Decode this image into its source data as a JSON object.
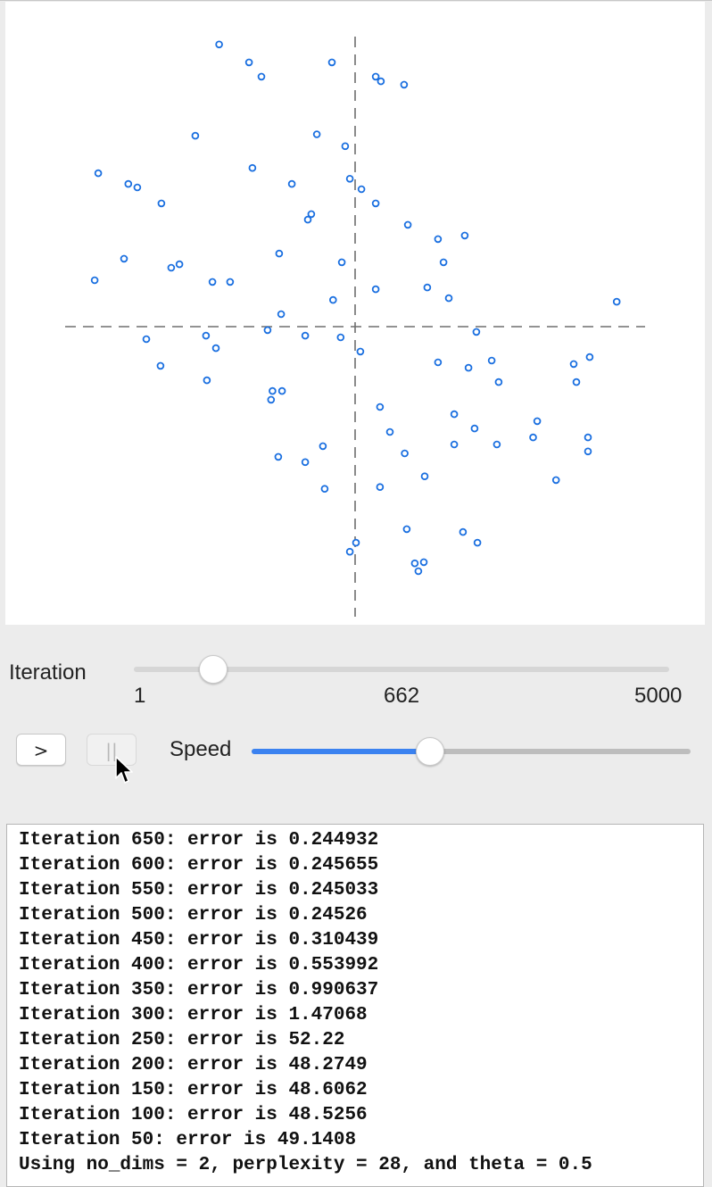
{
  "colors": {
    "point_stroke": "#1a6fe0",
    "axis_dash": "#6e6e6e",
    "slider_accent": "#3b82f0"
  },
  "chart_data": {
    "type": "scatter",
    "title": "",
    "xlabel": "",
    "ylabel": "",
    "xlim": [
      -1,
      1
    ],
    "ylim": [
      -1,
      1
    ],
    "axes": "dashed lines through origin",
    "grid": false,
    "series": [
      {
        "points": [
          [
            -0.469,
            0.973
          ],
          [
            -0.366,
            0.911
          ],
          [
            -0.323,
            0.862
          ],
          [
            -0.08,
            0.911
          ],
          [
            0.071,
            0.862
          ],
          [
            0.089,
            0.846
          ],
          [
            0.169,
            0.834
          ],
          [
            -0.551,
            0.658
          ],
          [
            -0.132,
            0.663
          ],
          [
            -0.034,
            0.622
          ],
          [
            -0.354,
            0.547
          ],
          [
            -0.886,
            0.529
          ],
          [
            -0.782,
            0.492
          ],
          [
            -0.751,
            0.48
          ],
          [
            -0.218,
            0.492
          ],
          [
            -0.018,
            0.51
          ],
          [
            0.022,
            0.474
          ],
          [
            0.071,
            0.425
          ],
          [
            -0.668,
            0.425
          ],
          [
            -0.151,
            0.388
          ],
          [
            -0.163,
            0.369
          ],
          [
            0.182,
            0.351
          ],
          [
            0.286,
            0.302
          ],
          [
            0.378,
            0.314
          ],
          [
            -0.797,
            0.234
          ],
          [
            -0.262,
            0.252
          ],
          [
            -0.634,
            0.203
          ],
          [
            -0.606,
            0.215
          ],
          [
            0.305,
            0.222
          ],
          [
            -0.046,
            0.222
          ],
          [
            -0.898,
            0.16
          ],
          [
            -0.492,
            0.154
          ],
          [
            -0.431,
            0.154
          ],
          [
            0.071,
            0.129
          ],
          [
            0.249,
            0.135
          ],
          [
            0.323,
            0.098
          ],
          [
            -0.076,
            0.092
          ],
          [
            0.902,
            0.086
          ],
          [
            -0.255,
            0.043
          ],
          [
            -0.302,
            -0.012
          ],
          [
            -0.172,
            -0.031
          ],
          [
            -0.514,
            -0.031
          ],
          [
            -0.72,
            -0.043
          ],
          [
            -0.05,
            -0.037
          ],
          [
            0.418,
            -0.018
          ],
          [
            -0.48,
            -0.074
          ],
          [
            0.018,
            -0.086
          ],
          [
            -0.671,
            -0.135
          ],
          [
            0.286,
            -0.123
          ],
          [
            0.391,
            -0.142
          ],
          [
            0.471,
            -0.117
          ],
          [
            0.754,
            -0.129
          ],
          [
            0.809,
            -0.105
          ],
          [
            -0.511,
            -0.185
          ],
          [
            -0.285,
            -0.222
          ],
          [
            -0.252,
            -0.222
          ],
          [
            -0.29,
            -0.252
          ],
          [
            0.495,
            -0.191
          ],
          [
            0.763,
            -0.191
          ],
          [
            0.086,
            -0.277
          ],
          [
            0.342,
            -0.302
          ],
          [
            0.628,
            -0.326
          ],
          [
            0.12,
            -0.363
          ],
          [
            0.412,
            -0.351
          ],
          [
            0.489,
            -0.406
          ],
          [
            0.614,
            -0.382
          ],
          [
            0.803,
            -0.382
          ],
          [
            0.342,
            -0.406
          ],
          [
            -0.111,
            -0.412
          ],
          [
            0.171,
            -0.437
          ],
          [
            -0.265,
            -0.449
          ],
          [
            -0.172,
            -0.467
          ],
          [
            0.803,
            -0.43
          ],
          [
            0.24,
            -0.516
          ],
          [
            -0.105,
            -0.559
          ],
          [
            0.086,
            -0.553
          ],
          [
            0.693,
            -0.529
          ],
          [
            0.178,
            -0.698
          ],
          [
            0.372,
            -0.708
          ],
          [
            0.422,
            -0.745
          ],
          [
            0.003,
            -0.745
          ],
          [
            -0.018,
            -0.776
          ],
          [
            0.206,
            -0.816
          ],
          [
            0.237,
            -0.812
          ],
          [
            0.218,
            -0.843
          ]
        ]
      }
    ]
  },
  "iteration": {
    "label": "Iteration",
    "min_label": "1",
    "current_label": "662",
    "max_label": "5000",
    "min": 1,
    "max": 5000,
    "value": 662
  },
  "controls": {
    "play_label": ">",
    "pause_label": "||",
    "play_icon": "play-icon",
    "pause_icon": "pause-icon",
    "cursor_icon": "arrow-cursor-icon"
  },
  "speed": {
    "label": "Speed",
    "value": 0.406
  },
  "log": {
    "lines": [
      "Iteration 650: error is 0.244932",
      "Iteration 600: error is 0.245655",
      "Iteration 550: error is 0.245033",
      "Iteration 500: error is 0.24526",
      "Iteration 450: error is 0.310439",
      "Iteration 400: error is 0.553992",
      "Iteration 350: error is 0.990637",
      "Iteration 300: error is 1.47068",
      "Iteration 250: error is 52.22",
      "Iteration 200: error is 48.2749",
      "Iteration 150: error is 48.6062",
      "Iteration 100: error is 48.5256",
      "Iteration 50: error is 49.1408",
      "Using no_dims = 2, perplexity = 28, and theta = 0.5"
    ]
  }
}
